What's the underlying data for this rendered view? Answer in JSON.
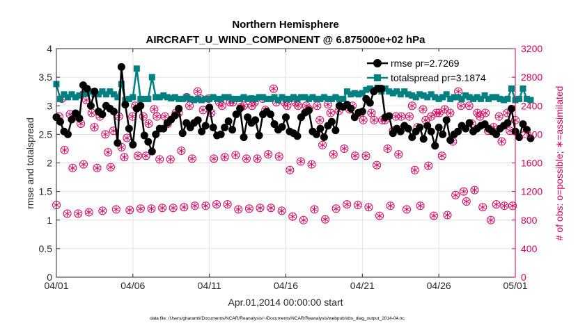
{
  "chart_data": {
    "type": "line",
    "title": "Northern Hemisphere",
    "subtitle": "AIRCRAFT_U_WIND_COMPONENT @ 6.875000e+02 hPa",
    "xlabel": "Apr.01,2014 00:00:00 start",
    "ylabel": "rmse and totalspread",
    "y2label": "# of obs: o=possible; ∗=assimilated",
    "footer": "data file: /Users/gharamti/Documents/NCAR/Reanalysis/~/Documents/NCAR/Reanalysis/webpub/obs_diag_output_2014-04.nc",
    "xlim": [
      0,
      30
    ],
    "ylim": [
      0,
      4
    ],
    "y2lim": [
      0,
      3200
    ],
    "xticks": [
      0,
      5,
      10,
      15,
      20,
      25,
      30
    ],
    "xtick_labels": [
      "04/01",
      "04/06",
      "04/11",
      "04/16",
      "04/21",
      "04/26",
      "05/01"
    ],
    "yticks": [
      0,
      0.5,
      1,
      1.5,
      2,
      2.5,
      3,
      3.5,
      4
    ],
    "ytick_labels": [
      "0",
      "0.5",
      "1",
      "1.5",
      "2",
      "2.5",
      "3",
      "3.5",
      "4"
    ],
    "y2ticks": [
      0,
      400,
      800,
      1200,
      1600,
      2000,
      2400,
      2800,
      3200
    ],
    "y2tick_labels": [
      "0",
      "400",
      "800",
      "1200",
      "1600",
      "2000",
      "2400",
      "2800",
      "3200"
    ],
    "legend": [
      "rmse pr=2.7269",
      "totalspread pr=3.1874"
    ],
    "legend_position": "top-right",
    "colors": {
      "rmse": "#000000",
      "totalspread": "#008080",
      "obs": "#d6005a",
      "grid": "#e1e1e1",
      "axes": "#262626"
    },
    "time_step_days": 0.25,
    "series": [
      {
        "name": "rmse",
        "values": [
          2.8,
          2.72,
          2.55,
          2.5,
          2.76,
          2.87,
          2.78,
          3.36,
          3.3,
          3.0,
          3.25,
          2.9,
          2.85,
          3.0,
          2.95,
          2.9,
          2.35,
          3.68,
          3.02,
          2.6,
          2.32,
          2.95,
          3.0,
          2.48,
          2.37,
          2.2,
          2.5,
          2.6,
          2.6,
          2.7,
          2.76,
          2.83,
          2.95,
          2.52,
          2.7,
          2.62,
          2.7,
          2.75,
          2.55,
          2.65,
          2.97,
          2.62,
          2.48,
          2.5,
          2.62,
          2.73,
          2.58,
          2.85,
          2.95,
          2.45,
          2.8,
          2.7,
          2.75,
          2.48,
          2.85,
          2.9,
          2.85,
          2.68,
          2.58,
          2.63,
          2.8,
          2.55,
          2.52,
          2.47,
          2.8,
          2.88,
          2.92,
          2.55,
          2.5,
          2.6,
          2.45,
          2.65,
          2.72,
          2.57,
          3.0,
          2.98,
          3.02,
          2.95,
          2.8,
          2.88,
          2.9,
          3.12,
          3.05,
          3.25,
          3.3,
          3.3,
          2.8,
          2.82,
          2.52,
          2.6,
          2.55,
          2.65,
          2.6,
          2.45,
          2.55,
          2.62,
          2.42,
          2.65,
          2.55,
          2.3,
          2.62,
          2.5,
          2.75,
          2.4,
          2.5,
          2.55,
          2.65,
          2.6,
          2.7,
          2.55,
          2.6,
          2.65,
          2.68,
          2.6,
          2.55,
          2.5,
          2.6,
          2.65,
          2.7,
          2.95,
          2.55,
          2.45,
          2.68,
          2.58,
          2.43
        ]
      },
      {
        "name": "totalspread",
        "values": [
          3.38,
          3.12,
          3.2,
          3.15,
          3.2,
          3.15,
          3.18,
          3.2,
          3.22,
          3.25,
          3.2,
          3.2,
          3.25,
          3.2,
          3.25,
          3.2,
          3.15,
          3.38,
          3.1,
          3.12,
          3.15,
          3.65,
          3.12,
          3.12,
          3.12,
          3.5,
          3.15,
          3.15,
          3.18,
          3.15,
          3.13,
          3.15,
          3.12,
          3.12,
          3.15,
          3.12,
          3.1,
          3.12,
          3.1,
          3.12,
          3.12,
          3.15,
          3.12,
          3.12,
          3.15,
          3.15,
          3.12,
          3.12,
          3.12,
          3.15,
          3.12,
          3.13,
          3.12,
          3.15,
          3.15,
          3.12,
          3.12,
          3.15,
          3.1,
          3.15,
          3.12,
          3.12,
          3.15,
          3.12,
          3.15,
          3.15,
          3.12,
          3.15,
          3.12,
          3.12,
          3.15,
          3.12,
          3.12,
          3.15,
          3.12,
          3.12,
          3.25,
          3.2,
          3.22,
          3.2,
          3.22,
          3.28,
          3.3,
          3.28,
          3.35,
          3.25,
          3.3,
          3.25,
          3.22,
          3.25,
          3.2,
          3.25,
          3.2,
          3.18,
          3.15,
          3.2,
          3.18,
          3.15,
          3.2,
          3.15,
          3.12,
          3.15,
          3.2,
          3.12,
          3.15,
          3.15,
          3.12,
          3.18,
          3.15,
          3.12,
          3.15,
          3.12,
          3.18,
          3.12,
          3.15,
          3.15,
          3.12,
          3.1,
          3.12,
          3.3,
          3.1,
          3.12,
          3.3,
          3.12,
          3.1
        ]
      },
      {
        "name": "obs_possible",
        "values": [
          1010,
          2250,
          2500,
          1780,
          890,
          2280,
          1530,
          2250,
          890,
          2150,
          1580,
          2480,
          910,
          2300,
          2100,
          1530,
          2250,
          930,
          2000,
          1750,
          1540,
          2050,
          950,
          2250,
          1820,
          1680,
          1950,
          940,
          2250,
          2400,
          1700,
          960,
          2250,
          1700,
          2150,
          960,
          2350,
          2250,
          1650,
          970,
          2250,
          2150,
          1650,
          970,
          2300,
          2300,
          1770,
          980,
          2520,
          2400,
          1660,
          1000,
          2600,
          2500,
          2340,
          1000,
          2500,
          2300,
          1660,
          1020,
          2450,
          2400,
          1680,
          1020,
          2450,
          2450,
          1710,
          950,
          2380,
          2400,
          1660,
          960,
          2400,
          2450,
          1660,
          970,
          2500,
          2340,
          1720,
          970,
          2640,
          2450,
          1690,
          930,
          2450,
          2400,
          1500,
          850,
          2450,
          2400,
          1620,
          800,
          2400,
          2350,
          1580,
          950,
          2400,
          2200,
          1850,
          810,
          2420,
          2300,
          1720,
          960,
          2330,
          2420,
          1800,
          1020,
          2350,
          2400,
          1700,
          1010,
          2300,
          2200,
          1700,
          980,
          2300,
          2200,
          1570,
          860,
          2200,
          2200,
          1800,
          1000,
          2050,
          2250,
          1720,
          2250,
          2100,
          950,
          2250,
          2400,
          1500,
          2100,
          1000,
          2350,
          2200,
          1560,
          2250,
          860,
          2300,
          2300,
          1700,
          2350,
          870,
          2300,
          1900,
          1150,
          2600,
          2400,
          1200,
          1060,
          2400,
          2150,
          1220,
          2300,
          2250,
          980,
          2300,
          2050,
          800,
          2100,
          1020,
          2250,
          1900,
          1000,
          2300,
          2050,
          1000,
          2200
        ]
      }
    ],
    "obs_note": "Each obs marker is drawn as an open circle (possible) with an asterisk (assimilated)."
  }
}
